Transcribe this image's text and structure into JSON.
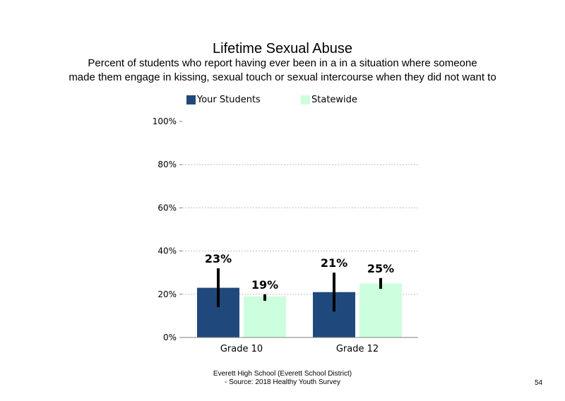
{
  "chart_data": {
    "type": "bar",
    "title": "Lifetime Sexual Abuse",
    "subtitle_lines": [
      "Percent of students who report having ever been in a in a situation where someone",
      "made them engage in kissing, sexual touch or sexual intercourse when they did not want to"
    ],
    "categories": [
      "Grade 10",
      "Grade 12"
    ],
    "series": [
      {
        "name": "Your Students",
        "color": "#1f497d",
        "values": [
          23,
          21
        ],
        "error_low": [
          14,
          12
        ],
        "error_high": [
          32,
          30
        ],
        "labels": [
          "23%",
          "21%"
        ]
      },
      {
        "name": "Statewide",
        "color": "#ccffdd",
        "values": [
          19,
          25
        ],
        "error_low": [
          17,
          22.5
        ],
        "error_high": [
          20,
          27.5
        ],
        "labels": [
          "19%",
          "25%"
        ]
      }
    ],
    "y_ticks": [
      "0%",
      "20%",
      "40%",
      "60%",
      "80%",
      "100%"
    ],
    "ylim": [
      0,
      100
    ],
    "grid": true,
    "legend_position": "top"
  },
  "footer": {
    "line1": "Everett High School (Everett School District)",
    "line2": "- Source: 2018 Healthy Youth Survey",
    "page_number": "54"
  }
}
